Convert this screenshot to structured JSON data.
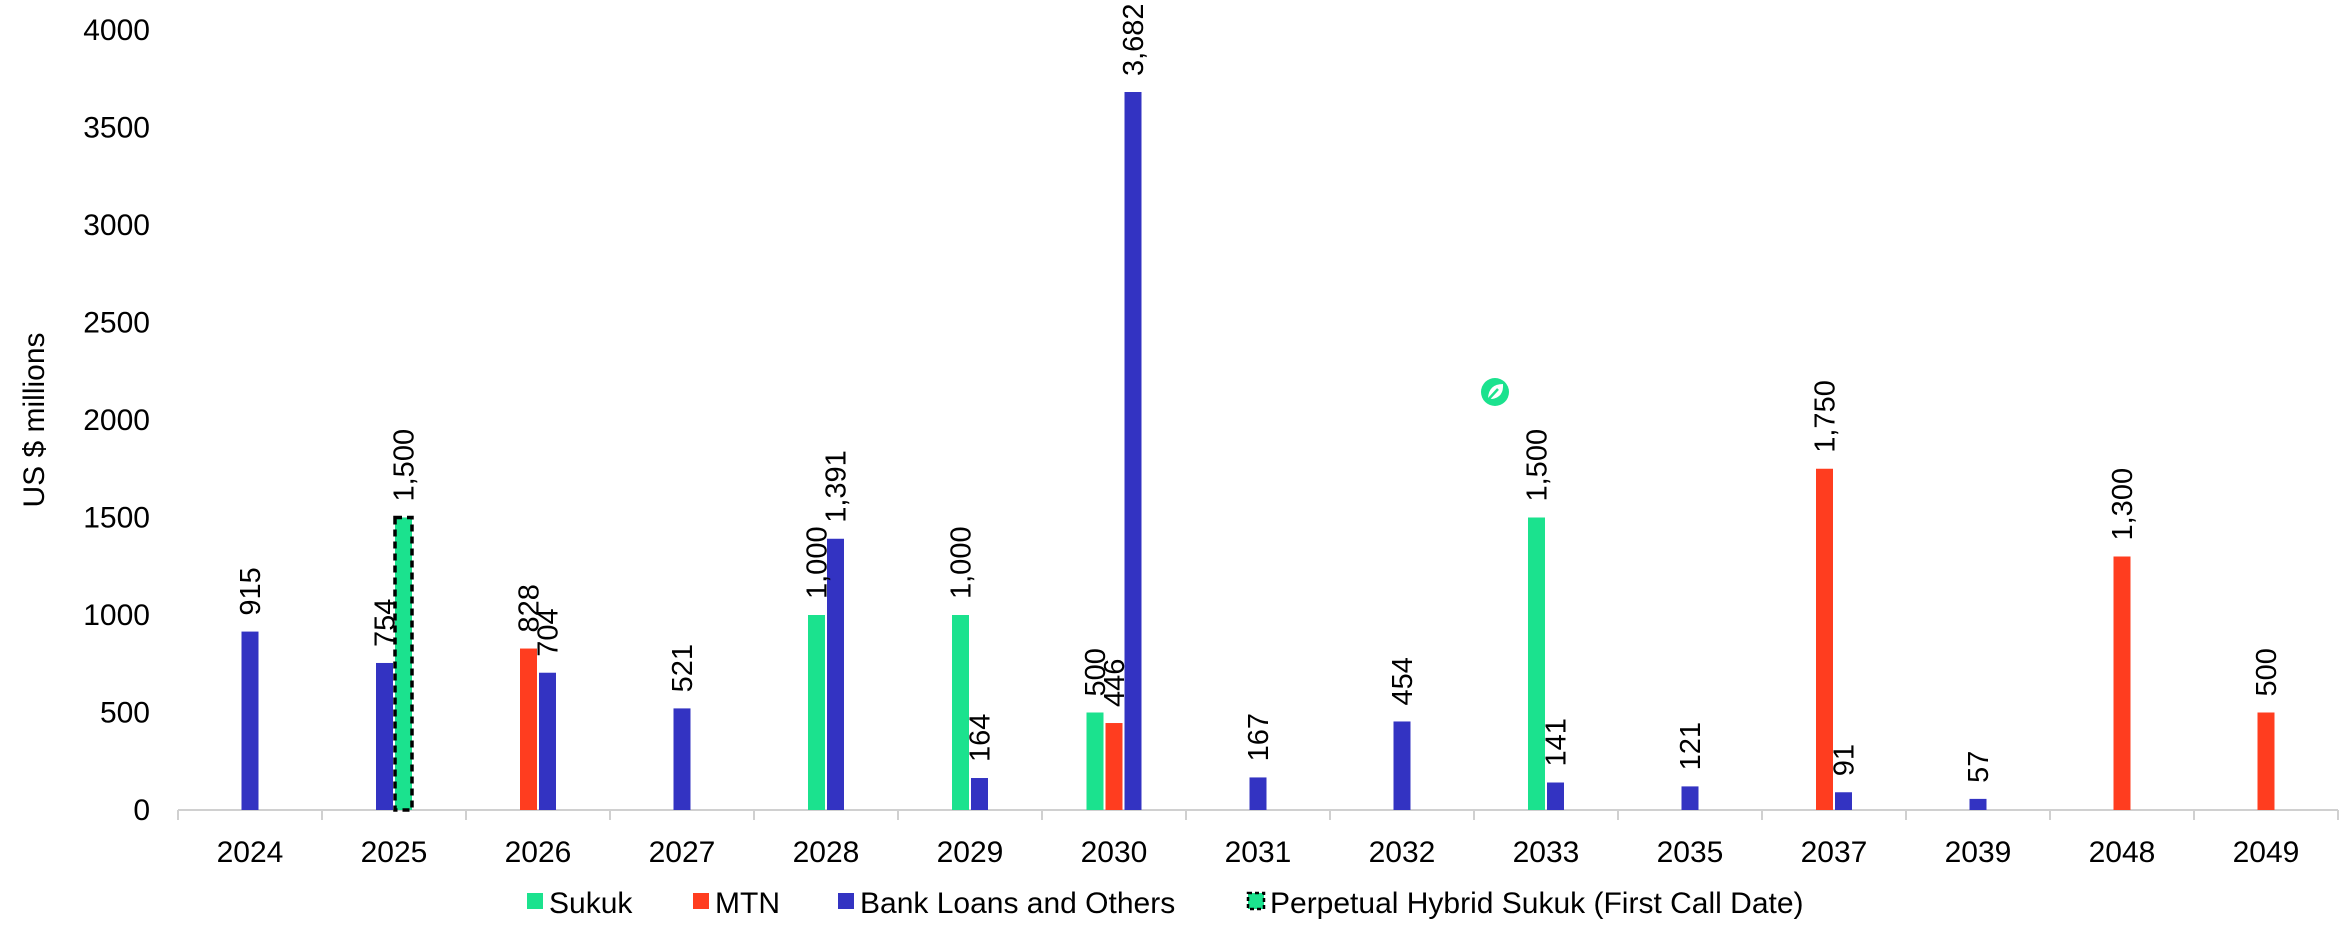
{
  "chart_data": {
    "type": "bar",
    "ylabel": "US $ millions",
    "ylim": [
      0,
      4000
    ],
    "yticks": [
      "0",
      "500",
      "1000",
      "1500",
      "2000",
      "2500",
      "3000",
      "3500",
      "4000"
    ],
    "categories": [
      "2024",
      "2025",
      "2026",
      "2027",
      "2028",
      "2029",
      "2030",
      "2031",
      "2032",
      "2033",
      "2035",
      "2037",
      "2039",
      "2048",
      "2049"
    ],
    "series": [
      {
        "name": "Sukuk",
        "color": "#1be28e",
        "style": "solid",
        "values": [
          null,
          null,
          null,
          null,
          1000,
          1000,
          500,
          null,
          null,
          1500,
          null,
          null,
          null,
          null,
          null
        ],
        "labels": [
          null,
          null,
          null,
          null,
          "1,000",
          "1,000",
          "500",
          null,
          null,
          "1,500",
          null,
          null,
          null,
          null,
          null
        ]
      },
      {
        "name": "MTN",
        "color": "#ff3d1f",
        "style": "solid",
        "values": [
          null,
          null,
          828,
          null,
          null,
          null,
          446,
          null,
          null,
          null,
          null,
          1750,
          null,
          1300,
          500
        ],
        "labels": [
          null,
          null,
          "828",
          null,
          null,
          null,
          "446",
          null,
          null,
          null,
          null,
          "1,750",
          null,
          "1,300",
          "500"
        ]
      },
      {
        "name": "Bank Loans and Others",
        "color": "#3333c2",
        "style": "solid",
        "values": [
          915,
          754,
          704,
          521,
          1391,
          164,
          3682,
          167,
          454,
          141,
          121,
          91,
          57,
          null,
          null
        ],
        "labels": [
          "915",
          "754",
          "704",
          "521",
          "1,391",
          "164",
          "3,682",
          "167",
          "454",
          "141",
          "121",
          "91",
          "57",
          null,
          null
        ]
      },
      {
        "name": "Perpetual Hybrid Sukuk (First Call Date)",
        "color": "#1be28e",
        "style": "dashed",
        "values": [
          null,
          1500,
          null,
          null,
          null,
          null,
          null,
          null,
          null,
          null,
          null,
          null,
          null,
          null,
          null
        ],
        "labels": [
          null,
          "1,500",
          null,
          null,
          null,
          null,
          null,
          null,
          null,
          null,
          null,
          null,
          null,
          null,
          null
        ]
      }
    ],
    "annotations": [
      {
        "type": "leaf-icon",
        "category": "2033",
        "color": "#1be28e"
      }
    ],
    "legend": "bottom"
  }
}
